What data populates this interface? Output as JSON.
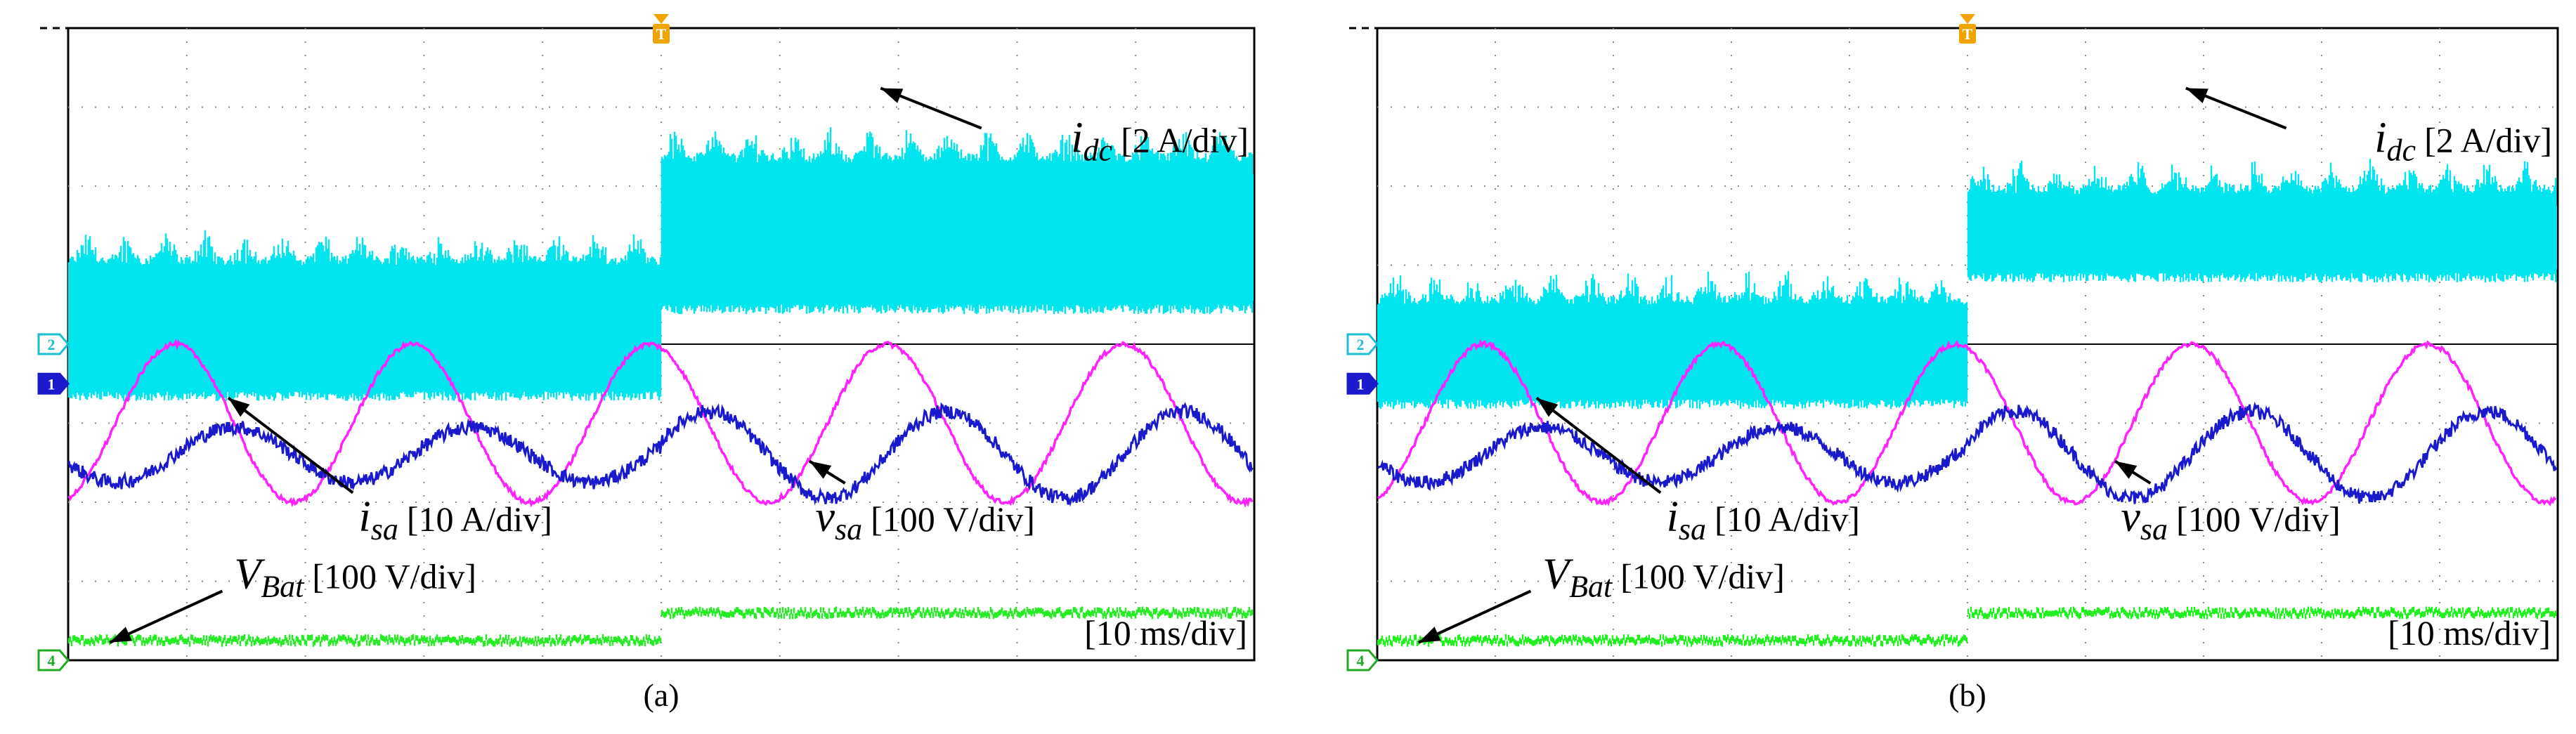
{
  "panels": [
    {
      "id": "a",
      "caption": "(a)",
      "labels": {
        "idc": {
          "main": "i",
          "sub": "dc",
          "scale": "[2 A/div]"
        },
        "vsa": {
          "main": "v",
          "sub": "sa",
          "scale": "[100 V/div]"
        },
        "isa": {
          "main": "i",
          "sub": "sa",
          "scale": "[10 A/div]"
        },
        "vbat": {
          "main": "V",
          "sub": "Bat",
          "scale": "[100 V/div]"
        },
        "time": "[10 ms/div]"
      },
      "markers": {
        "trigger": "T",
        "ch1": "1",
        "ch2": "2",
        "ch4": "4"
      }
    },
    {
      "id": "b",
      "caption": "(b)",
      "labels": {
        "idc": {
          "main": "i",
          "sub": "dc",
          "scale": "[2 A/div]"
        },
        "vsa": {
          "main": "v",
          "sub": "sa",
          "scale": "[100 V/div]"
        },
        "isa": {
          "main": "i",
          "sub": "sa",
          "scale": "[10 A/div]"
        },
        "vbat": {
          "main": "V",
          "sub": "Bat",
          "scale": "[100 V/div]"
        },
        "time": "[10 ms/div]"
      },
      "markers": {
        "trigger": "T",
        "ch1": "1",
        "ch2": "2",
        "ch4": "4"
      }
    }
  ],
  "chart_data": [
    {
      "type": "line",
      "panel": "a",
      "title": "",
      "x_unit": "ms",
      "xlim": [
        0,
        100
      ],
      "x_divisions": 10,
      "y_divisions": 8,
      "trigger_time_ms": 50,
      "grid": true,
      "series": [
        {
          "name": "i_dc",
          "scale": "2 A/div",
          "color": "#00e5ee",
          "ripple": true,
          "envelope_div_before": {
            "upper": 5.0,
            "lower": 3.4
          },
          "envelope_div_after": {
            "upper": 6.3,
            "lower": 4.5
          }
        },
        {
          "name": "v_sa",
          "scale": "100 V/div",
          "color": "#ff22ff",
          "frequency_hz": 50,
          "offset_div": 3.0,
          "amplitude_div": 1.0
        },
        {
          "name": "i_sa",
          "scale": "10 A/div",
          "color": "#1a1acc",
          "frequency_hz": 50,
          "offset_div_before": 2.6,
          "amplitude_div_before": 0.35,
          "offset_div_after": 2.6,
          "amplitude_div_after": 0.55
        },
        {
          "name": "V_Bat",
          "scale": "100 V/div",
          "color": "#22ee22",
          "level_div_before": 0.25,
          "level_div_after": 0.6
        }
      ]
    },
    {
      "type": "line",
      "panel": "b",
      "title": "",
      "x_unit": "ms",
      "xlim": [
        0,
        100
      ],
      "x_divisions": 10,
      "y_divisions": 8,
      "trigger_time_ms": 50,
      "grid": true,
      "series": [
        {
          "name": "i_dc",
          "scale": "2 A/div",
          "color": "#00e5ee",
          "ripple": true,
          "envelope_div_before": {
            "upper": 4.5,
            "lower": 3.3
          },
          "envelope_div_after": {
            "upper": 5.9,
            "lower": 4.9
          }
        },
        {
          "name": "v_sa",
          "scale": "100 V/div",
          "color": "#ff22ff",
          "frequency_hz": 50,
          "offset_div": 3.0,
          "amplitude_div": 1.0
        },
        {
          "name": "i_sa",
          "scale": "10 A/div",
          "color": "#1a1acc",
          "frequency_hz": 50,
          "offset_div_before": 2.6,
          "amplitude_div_before": 0.35,
          "offset_div_after": 2.6,
          "amplitude_div_after": 0.55
        },
        {
          "name": "V_Bat",
          "scale": "100 V/div",
          "color": "#22ee22",
          "level_div_before": 0.25,
          "level_div_after": 0.6
        }
      ]
    }
  ]
}
